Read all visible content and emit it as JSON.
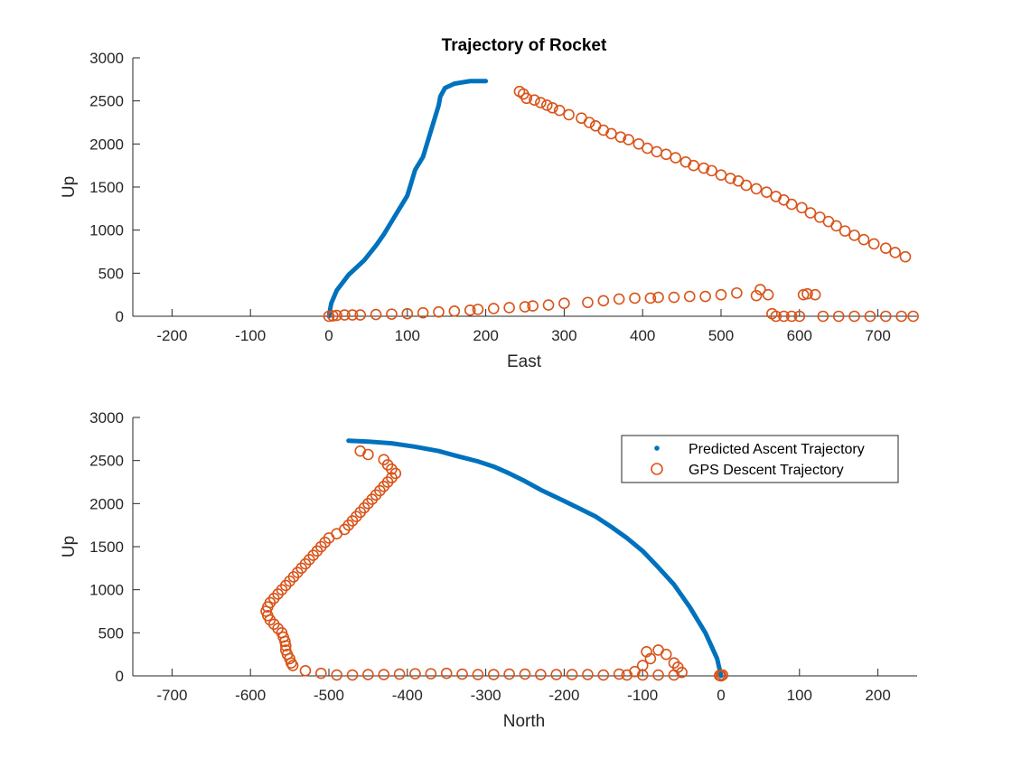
{
  "chart_data": [
    {
      "type": "scatter",
      "title": "Trajectory of Rocket",
      "xlabel": "East",
      "ylabel": "Up",
      "xlim": [
        -250,
        750
      ],
      "ylim": [
        0,
        3000
      ],
      "x_ticks": [
        "-200",
        "-100",
        "0",
        "100",
        "200",
        "300",
        "400",
        "500",
        "600",
        "700"
      ],
      "x_tick_values": [
        -200,
        -100,
        0,
        100,
        200,
        300,
        400,
        500,
        600,
        700
      ],
      "y_ticks": [
        "0",
        "500",
        "1000",
        "1500",
        "2000",
        "2500",
        "3000"
      ],
      "y_tick_values": [
        0,
        500,
        1000,
        1500,
        2000,
        2500,
        3000
      ],
      "grid": false,
      "legend": null,
      "series": [
        {
          "name": "Predicted Ascent Trajectory",
          "marker": "dot",
          "color": "#0072BD",
          "points": [
            [
              0,
              0
            ],
            [
              3,
              150
            ],
            [
              10,
              300
            ],
            [
              25,
              480
            ],
            [
              45,
              650
            ],
            [
              60,
              820
            ],
            [
              70,
              950
            ],
            [
              80,
              1100
            ],
            [
              90,
              1250
            ],
            [
              100,
              1400
            ],
            [
              105,
              1550
            ],
            [
              110,
              1700
            ],
            [
              120,
              1850
            ],
            [
              125,
              2000
            ],
            [
              130,
              2150
            ],
            [
              135,
              2300
            ],
            [
              140,
              2450
            ],
            [
              142,
              2550
            ],
            [
              148,
              2650
            ],
            [
              160,
              2700
            ],
            [
              180,
              2730
            ],
            [
              200,
              2730
            ]
          ]
        },
        {
          "name": "GPS Descent Trajectory",
          "marker": "open-circle",
          "color": "#D95319",
          "points": [
            [
              243,
              2610
            ],
            [
              248,
              2580
            ],
            [
              252,
              2530
            ],
            [
              262,
              2510
            ],
            [
              270,
              2480
            ],
            [
              278,
              2450
            ],
            [
              285,
              2420
            ],
            [
              294,
              2390
            ],
            [
              306,
              2340
            ],
            [
              322,
              2300
            ],
            [
              332,
              2250
            ],
            [
              340,
              2210
            ],
            [
              350,
              2160
            ],
            [
              360,
              2120
            ],
            [
              372,
              2080
            ],
            [
              382,
              2050
            ],
            [
              395,
              2000
            ],
            [
              406,
              1950
            ],
            [
              418,
              1910
            ],
            [
              430,
              1880
            ],
            [
              442,
              1840
            ],
            [
              455,
              1790
            ],
            [
              465,
              1750
            ],
            [
              478,
              1720
            ],
            [
              488,
              1690
            ],
            [
              500,
              1640
            ],
            [
              512,
              1600
            ],
            [
              522,
              1570
            ],
            [
              532,
              1520
            ],
            [
              545,
              1480
            ],
            [
              558,
              1440
            ],
            [
              570,
              1390
            ],
            [
              580,
              1350
            ],
            [
              590,
              1300
            ],
            [
              603,
              1260
            ],
            [
              614,
              1200
            ],
            [
              626,
              1150
            ],
            [
              637,
              1100
            ],
            [
              647,
              1050
            ],
            [
              658,
              990
            ],
            [
              670,
              940
            ],
            [
              682,
              890
            ],
            [
              695,
              840
            ],
            [
              710,
              790
            ],
            [
              722,
              740
            ],
            [
              735,
              690
            ],
            [
              0,
              0
            ],
            [
              5,
              5
            ],
            [
              10,
              10
            ],
            [
              20,
              15
            ],
            [
              30,
              15
            ],
            [
              40,
              15
            ],
            [
              60,
              20
            ],
            [
              80,
              25
            ],
            [
              100,
              30
            ],
            [
              120,
              40
            ],
            [
              140,
              50
            ],
            [
              160,
              60
            ],
            [
              180,
              70
            ],
            [
              190,
              80
            ],
            [
              210,
              90
            ],
            [
              230,
              100
            ],
            [
              250,
              110
            ],
            [
              260,
              120
            ],
            [
              280,
              130
            ],
            [
              300,
              150
            ],
            [
              330,
              160
            ],
            [
              350,
              180
            ],
            [
              370,
              200
            ],
            [
              390,
              210
            ],
            [
              410,
              210
            ],
            [
              420,
              220
            ],
            [
              440,
              220
            ],
            [
              460,
              230
            ],
            [
              480,
              230
            ],
            [
              500,
              250
            ],
            [
              520,
              270
            ],
            [
              545,
              240
            ],
            [
              550,
              310
            ],
            [
              560,
              250
            ],
            [
              565,
              30
            ],
            [
              570,
              0
            ],
            [
              580,
              0
            ],
            [
              590,
              0
            ],
            [
              600,
              0
            ],
            [
              605,
              250
            ],
            [
              610,
              260
            ],
            [
              620,
              250
            ],
            [
              630,
              0
            ],
            [
              650,
              0
            ],
            [
              670,
              0
            ],
            [
              690,
              0
            ],
            [
              710,
              0
            ],
            [
              730,
              0
            ],
            [
              745,
              0
            ]
          ]
        }
      ]
    },
    {
      "type": "scatter",
      "title": "",
      "xlabel": "North",
      "ylabel": "Up",
      "xlim": [
        -750,
        250
      ],
      "ylim": [
        0,
        3000
      ],
      "x_ticks": [
        "-700",
        "-600",
        "-500",
        "-400",
        "-300",
        "-200",
        "-100",
        "0",
        "100",
        "200"
      ],
      "x_tick_values": [
        -700,
        -600,
        -500,
        -400,
        -300,
        -200,
        -100,
        0,
        100,
        200
      ],
      "y_ticks": [
        "0",
        "500",
        "1000",
        "1500",
        "2000",
        "2500",
        "3000"
      ],
      "y_tick_values": [
        0,
        500,
        1000,
        1500,
        2000,
        2500,
        3000
      ],
      "grid": false,
      "legend": "top-right",
      "series": [
        {
          "name": "Predicted Ascent Trajectory",
          "marker": "dot",
          "color": "#0072BD",
          "points": [
            [
              -475,
              2730
            ],
            [
              -450,
              2720
            ],
            [
              -420,
              2700
            ],
            [
              -390,
              2660
            ],
            [
              -360,
              2610
            ],
            [
              -340,
              2560
            ],
            [
              -310,
              2490
            ],
            [
              -290,
              2430
            ],
            [
              -270,
              2350
            ],
            [
              -250,
              2260
            ],
            [
              -230,
              2160
            ],
            [
              -200,
              2030
            ],
            [
              -180,
              1940
            ],
            [
              -160,
              1850
            ],
            [
              -140,
              1730
            ],
            [
              -120,
              1600
            ],
            [
              -100,
              1450
            ],
            [
              -80,
              1260
            ],
            [
              -60,
              1060
            ],
            [
              -40,
              800
            ],
            [
              -20,
              500
            ],
            [
              -5,
              200
            ],
            [
              0,
              0
            ]
          ]
        },
        {
          "name": "GPS Descent Trajectory",
          "marker": "open-circle",
          "color": "#D95319",
          "points": [
            [
              -460,
              2610
            ],
            [
              -450,
              2570
            ],
            [
              -430,
              2510
            ],
            [
              -425,
              2450
            ],
            [
              -420,
              2400
            ],
            [
              -415,
              2350
            ],
            [
              -420,
              2300
            ],
            [
              -425,
              2250
            ],
            [
              -430,
              2200
            ],
            [
              -435,
              2150
            ],
            [
              -440,
              2100
            ],
            [
              -445,
              2050
            ],
            [
              -450,
              2000
            ],
            [
              -455,
              1950
            ],
            [
              -460,
              1900
            ],
            [
              -465,
              1850
            ],
            [
              -470,
              1800
            ],
            [
              -475,
              1750
            ],
            [
              -480,
              1700
            ],
            [
              -490,
              1650
            ],
            [
              -500,
              1600
            ],
            [
              -505,
              1550
            ],
            [
              -510,
              1500
            ],
            [
              -515,
              1450
            ],
            [
              -520,
              1400
            ],
            [
              -525,
              1350
            ],
            [
              -530,
              1300
            ],
            [
              -535,
              1250
            ],
            [
              -540,
              1200
            ],
            [
              -545,
              1150
            ],
            [
              -550,
              1100
            ],
            [
              -555,
              1050
            ],
            [
              -560,
              1000
            ],
            [
              -565,
              950
            ],
            [
              -570,
              900
            ],
            [
              -575,
              850
            ],
            [
              -578,
              800
            ],
            [
              -580,
              750
            ],
            [
              -578,
              700
            ],
            [
              -575,
              650
            ],
            [
              -570,
              600
            ],
            [
              -565,
              550
            ],
            [
              -560,
              500
            ],
            [
              -558,
              450
            ],
            [
              -556,
              400
            ],
            [
              -555,
              350
            ],
            [
              -555,
              300
            ],
            [
              -553,
              250
            ],
            [
              -550,
              200
            ],
            [
              -548,
              150
            ],
            [
              -546,
              120
            ],
            [
              -530,
              60
            ],
            [
              -510,
              30
            ],
            [
              -490,
              10
            ],
            [
              -470,
              10
            ],
            [
              -450,
              15
            ],
            [
              -430,
              15
            ],
            [
              -410,
              20
            ],
            [
              -390,
              25
            ],
            [
              -370,
              25
            ],
            [
              -350,
              30
            ],
            [
              -330,
              20
            ],
            [
              -310,
              15
            ],
            [
              -290,
              15
            ],
            [
              -270,
              20
            ],
            [
              -250,
              20
            ],
            [
              -230,
              15
            ],
            [
              -210,
              15
            ],
            [
              -190,
              15
            ],
            [
              -170,
              15
            ],
            [
              -150,
              10
            ],
            [
              -130,
              20
            ],
            [
              -110,
              50
            ],
            [
              -100,
              120
            ],
            [
              -90,
              200
            ],
            [
              -95,
              280
            ],
            [
              -80,
              300
            ],
            [
              -70,
              250
            ],
            [
              -60,
              150
            ],
            [
              -55,
              100
            ],
            [
              -50,
              40
            ],
            [
              -60,
              10
            ],
            [
              -80,
              10
            ],
            [
              -100,
              10
            ],
            [
              -120,
              10
            ],
            [
              0,
              0
            ],
            [
              2,
              10
            ],
            [
              -2,
              5
            ]
          ]
        }
      ]
    }
  ]
}
